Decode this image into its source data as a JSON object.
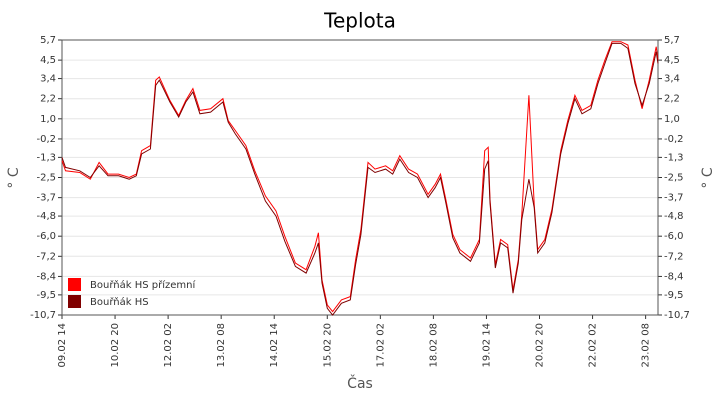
{
  "chart_data": {
    "type": "line",
    "title": "Teplota",
    "x_label": "Čas",
    "y_label": "° C",
    "y2_label": "° C",
    "x": [
      "09.02 14",
      "09.02 16",
      "10.02 00",
      "10.02 06",
      "10.02 11",
      "10.02 16",
      "10.02 22",
      "11.02 04",
      "11.02 08",
      "11.02 11",
      "11.02 16",
      "11.02 19",
      "11.02 21",
      "12.02 03",
      "12.02 08",
      "12.02 12",
      "12.02 16",
      "12.02 20",
      "13.02 02",
      "13.02 09",
      "13.02 12",
      "13.02 16",
      "13.02 22",
      "14.02 03",
      "14.02 09",
      "14.02 15",
      "14.02 20",
      "15.02 02",
      "15.02 08",
      "15.02 13",
      "15.02 15",
      "15.02 17",
      "15.02 20",
      "15.02 23",
      "16.02 04",
      "16.02 09",
      "16.02 12",
      "16.02 15",
      "16.02 19",
      "16.02 23",
      "17.02 05",
      "17.02 09",
      "17.02 13",
      "17.02 18",
      "17.02 23",
      "18.02 05",
      "18.02 09",
      "18.02 12",
      "18.02 15",
      "18.02 19",
      "18.02 23",
      "19.02 05",
      "19.02 10",
      "19.02 13",
      "19.02 15",
      "19.02 16",
      "19.02 19",
      "19.02 22",
      "20.02 02",
      "20.02 05",
      "20.02 08",
      "20.02 10",
      "20.02 14",
      "20.02 17",
      "20.02 19",
      "20.02 23",
      "21.02 03",
      "21.02 08",
      "21.02 12",
      "21.02 16",
      "21.02 20",
      "22.02 01",
      "22.02 05",
      "22.02 09",
      "22.02 13",
      "22.02 18",
      "22.02 22",
      "23.02 02",
      "23.02 06",
      "23.02 10",
      "23.02 14",
      "23.02 15"
    ],
    "series": [
      {
        "name": "Bouřňák HS přízemní",
        "color": "#ff0000",
        "values": [
          -1.5,
          -2.1,
          -2.2,
          -2.6,
          -1.6,
          -2.3,
          -2.3,
          -2.5,
          -2.3,
          -0.9,
          -0.6,
          3.3,
          3.5,
          2.1,
          1.2,
          2.1,
          2.8,
          1.5,
          1.6,
          2.2,
          0.9,
          0.3,
          -0.6,
          -2.1,
          -3.6,
          -4.5,
          -6.0,
          -7.6,
          -8.0,
          -6.6,
          -5.8,
          -8.6,
          -10.1,
          -10.5,
          -9.8,
          -9.6,
          -7.4,
          -5.6,
          -1.6,
          -2.0,
          -1.8,
          -2.1,
          -1.2,
          -2.0,
          -2.3,
          -3.5,
          -2.9,
          -2.3,
          -3.8,
          -5.9,
          -6.8,
          -7.3,
          -6.2,
          -0.9,
          -0.7,
          -3.8,
          -7.7,
          -6.2,
          -6.5,
          -9.2,
          -7.4,
          -4.7,
          2.4,
          -4.1,
          -6.8,
          -6.2,
          -4.4,
          -0.9,
          0.9,
          2.4,
          1.5,
          1.8,
          3.3,
          4.5,
          5.6,
          5.6,
          5.4,
          3.3,
          1.6,
          3.3,
          5.3,
          4.5
        ]
      },
      {
        "name": "Bouřňák HS",
        "color": "#800000",
        "values": [
          -1.3,
          -1.9,
          -2.1,
          -2.5,
          -1.8,
          -2.4,
          -2.4,
          -2.6,
          -2.4,
          -1.1,
          -0.8,
          3.0,
          3.3,
          2.0,
          1.1,
          2.0,
          2.6,
          1.3,
          1.4,
          2.0,
          0.8,
          0.1,
          -0.8,
          -2.3,
          -3.9,
          -4.8,
          -6.3,
          -7.8,
          -8.2,
          -7.0,
          -6.4,
          -8.8,
          -10.3,
          -10.7,
          -10.0,
          -9.8,
          -7.7,
          -5.9,
          -1.9,
          -2.2,
          -2.0,
          -2.3,
          -1.4,
          -2.2,
          -2.5,
          -3.7,
          -3.1,
          -2.5,
          -4.0,
          -6.1,
          -7.0,
          -7.5,
          -6.4,
          -2.0,
          -1.5,
          -4.0,
          -7.9,
          -6.4,
          -6.7,
          -9.4,
          -7.6,
          -5.0,
          -2.6,
          -4.3,
          -7.0,
          -6.4,
          -4.6,
          -1.1,
          0.7,
          2.2,
          1.3,
          1.6,
          3.1,
          4.3,
          5.5,
          5.5,
          5.2,
          3.1,
          1.8,
          3.1,
          5.0,
          4.3
        ]
      }
    ],
    "xlim": [
      "09.02 14",
      "23.02 15"
    ],
    "xticks": [
      "09.02 14",
      "10.02 20",
      "12.02 02",
      "13.02 08",
      "14.02 14",
      "15.02 20",
      "17.02 02",
      "18.02 08",
      "19.02 14",
      "20.02 20",
      "22.02 02",
      "23.02 08"
    ],
    "ylim": [
      -10.7,
      5.7
    ],
    "yticks": [
      {
        "value": 5.7,
        "label": "5,7"
      },
      {
        "value": 4.5,
        "label": "4,5"
      },
      {
        "value": 3.4,
        "label": "3,4"
      },
      {
        "value": 2.2,
        "label": "2,2"
      },
      {
        "value": 1.0,
        "label": "1,0"
      },
      {
        "value": -0.2,
        "label": "-0,2"
      },
      {
        "value": -1.3,
        "label": "-1,3"
      },
      {
        "value": -2.5,
        "label": "-2,5"
      },
      {
        "value": -3.7,
        "label": "-3,7"
      },
      {
        "value": -4.8,
        "label": "-4,8"
      },
      {
        "value": -6.0,
        "label": "-6,0"
      },
      {
        "value": -7.2,
        "label": "-7,2"
      },
      {
        "value": -8.4,
        "label": "-8,4"
      },
      {
        "value": -9.5,
        "label": "-9,5"
      },
      {
        "value": -10.7,
        "label": "-10,7"
      }
    ],
    "grid": true,
    "legend": "lower left"
  }
}
